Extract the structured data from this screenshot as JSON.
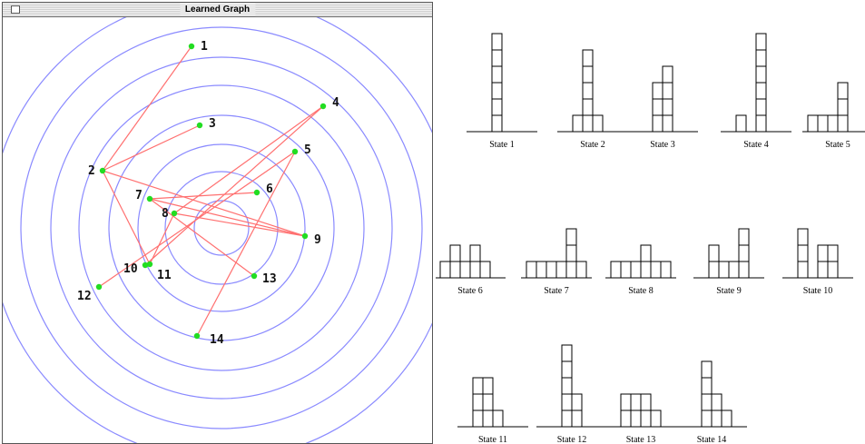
{
  "window": {
    "title": "Learned Graph"
  },
  "graph": {
    "ring_color": "#8a8aff",
    "edge_color": "#ff7070",
    "node_color": "#22dd22",
    "nodes": [
      {
        "id": "1",
        "label": "1"
      },
      {
        "id": "2",
        "label": "2"
      },
      {
        "id": "3",
        "label": "3"
      },
      {
        "id": "4",
        "label": "4"
      },
      {
        "id": "5",
        "label": "5"
      },
      {
        "id": "6",
        "label": "6"
      },
      {
        "id": "7",
        "label": "7"
      },
      {
        "id": "8",
        "label": "8"
      },
      {
        "id": "9",
        "label": "9"
      },
      {
        "id": "10",
        "label": "10"
      },
      {
        "id": "11",
        "label": "11"
      },
      {
        "id": "12",
        "label": "12"
      },
      {
        "id": "13",
        "label": "13"
      },
      {
        "id": "14",
        "label": "14"
      }
    ],
    "edges": [
      [
        "1",
        "2"
      ],
      [
        "2",
        "3"
      ],
      [
        "2",
        "9"
      ],
      [
        "2",
        "11"
      ],
      [
        "4",
        "8"
      ],
      [
        "4",
        "10"
      ],
      [
        "5",
        "12"
      ],
      [
        "5",
        "14"
      ],
      [
        "6",
        "7"
      ],
      [
        "7",
        "9"
      ],
      [
        "7",
        "13"
      ],
      [
        "8",
        "9"
      ],
      [
        "8",
        "11"
      ]
    ]
  },
  "states": [
    {
      "label": "State 1",
      "stacks": [
        0,
        0,
        6,
        0,
        0,
        0
      ]
    },
    {
      "label": "State 2",
      "stacks": [
        0,
        1,
        5,
        1,
        0,
        0
      ]
    },
    {
      "label": "State 3",
      "stacks": [
        0,
        0,
        3,
        4,
        0,
        0
      ]
    },
    {
      "label": "State 4",
      "stacks": [
        0,
        1,
        0,
        6,
        0,
        0
      ]
    },
    {
      "label": "State 5",
      "stacks": [
        1,
        1,
        1,
        3,
        0,
        0
      ]
    },
    {
      "label": "State 6",
      "stacks": [
        1,
        2,
        1,
        2,
        1,
        0
      ]
    },
    {
      "label": "State 7",
      "stacks": [
        1,
        1,
        1,
        1,
        3,
        1
      ]
    },
    {
      "label": "State 8",
      "stacks": [
        1,
        1,
        1,
        2,
        1,
        1
      ]
    },
    {
      "label": "State 9",
      "stacks": [
        0,
        2,
        1,
        1,
        3,
        0
      ]
    },
    {
      "label": "State 10",
      "stacks": [
        0,
        3,
        0,
        2,
        2,
        0
      ]
    },
    {
      "label": "State 11",
      "stacks": [
        0,
        3,
        3,
        1,
        0,
        0
      ]
    },
    {
      "label": "State 12",
      "stacks": [
        0,
        0,
        5,
        2,
        0,
        0
      ]
    },
    {
      "label": "State 13",
      "stacks": [
        0,
        2,
        2,
        2,
        1,
        0
      ]
    },
    {
      "label": "State 14",
      "stacks": [
        0,
        0,
        4,
        2,
        1,
        0
      ]
    }
  ]
}
